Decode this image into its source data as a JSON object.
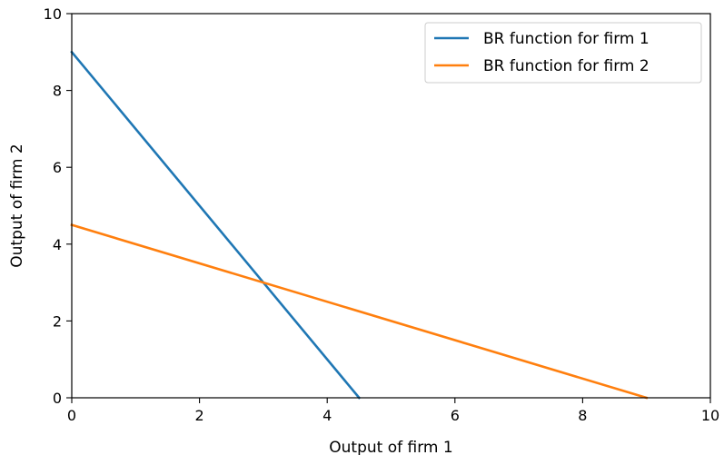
{
  "chart_data": {
    "type": "line",
    "title": "",
    "xlabel": "Output of firm 1",
    "ylabel": "Output of firm 2",
    "xlim": [
      0,
      10
    ],
    "ylim": [
      0,
      10
    ],
    "xticks": [
      0,
      2,
      4,
      6,
      8,
      10
    ],
    "yticks": [
      0,
      2,
      4,
      6,
      8,
      10
    ],
    "grid": false,
    "legend": "top-right",
    "series": [
      {
        "name": "BR function for firm 1",
        "color": "#1f77b4",
        "x": [
          0,
          4.5
        ],
        "y": [
          9,
          0
        ]
      },
      {
        "name": "BR function for firm 2",
        "color": "#ff7f0e",
        "x": [
          0,
          9
        ],
        "y": [
          4.5,
          0
        ]
      }
    ]
  }
}
